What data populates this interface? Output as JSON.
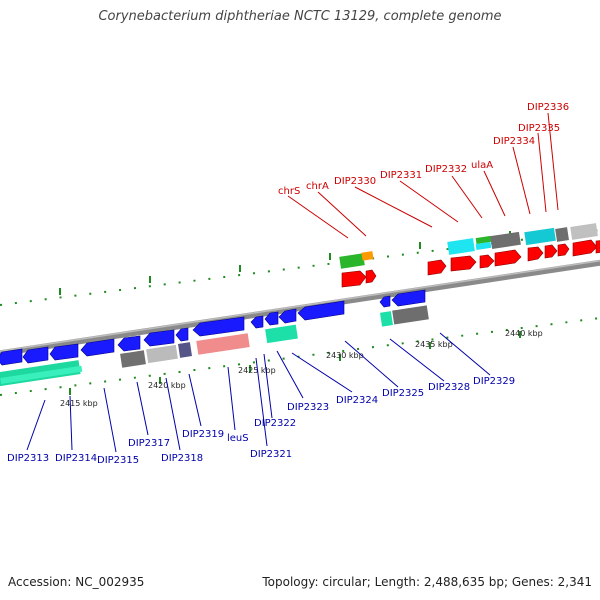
{
  "title": "Corynebacterium diphtheriae NCTC 13129, complete genome",
  "footer": {
    "accession": "Accession: NC_002935",
    "info": "Topology: circular; Length: 2,488,635 bp; Genes: 2,341"
  },
  "ticks": [
    "2415 kbp",
    "2420 kbp",
    "2425 kbp",
    "2430 kbp",
    "2435 kbp",
    "2440 kbp"
  ],
  "forward_labels": [
    "chrS",
    "chrA",
    "DIP2330",
    "DIP2331",
    "DIP2332",
    "ulaA",
    "DIP2334",
    "DIP2335",
    "DIP2336"
  ],
  "reverse_labels": [
    "DIP2313",
    "DIP2314",
    "DIP2315",
    "DIP2317",
    "DIP2318",
    "DIP2319",
    "leuS",
    "DIP2321",
    "DIP2322",
    "DIP2323",
    "DIP2324",
    "DIP2325",
    "DIP2328",
    "DIP2329"
  ],
  "colors": {
    "forward_label": "#cc0000",
    "reverse_label": "#0000aa",
    "forward_gene": "#ff0000",
    "reverse_gene": "#1a1aff",
    "backbone": "#8a8a8a",
    "tick": "#1f8a1f"
  }
}
